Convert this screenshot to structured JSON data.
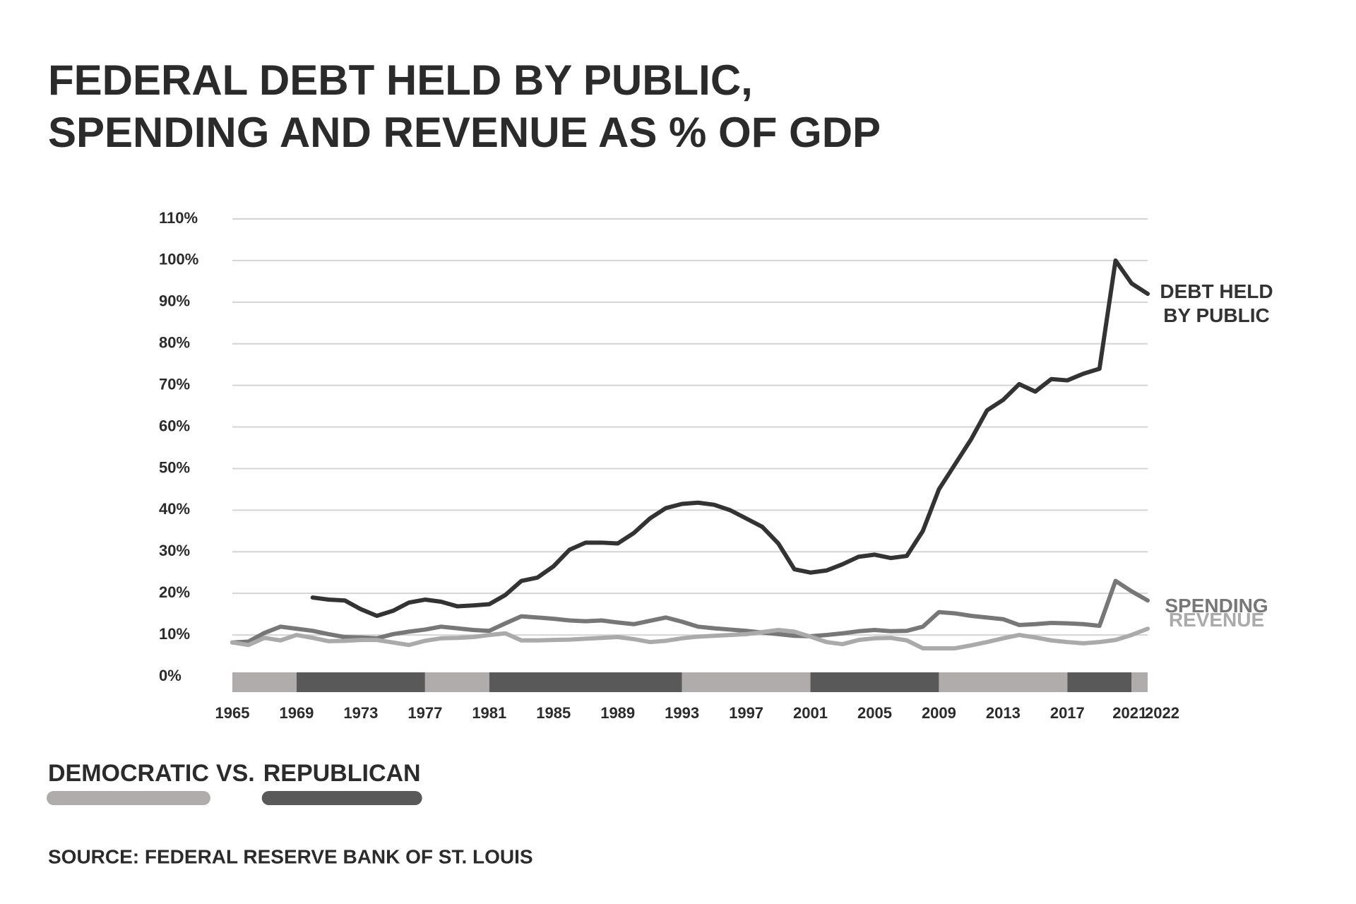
{
  "chart_data": {
    "type": "line",
    "title_lines": [
      "FEDERAL DEBT HELD BY PUBLIC,",
      "SPENDING AND REVENUE AS % OF GDP"
    ],
    "x": [
      1965,
      1966,
      1967,
      1968,
      1969,
      1970,
      1971,
      1972,
      1973,
      1974,
      1975,
      1976,
      1977,
      1978,
      1979,
      1980,
      1981,
      1982,
      1983,
      1984,
      1985,
      1986,
      1987,
      1988,
      1989,
      1990,
      1991,
      1992,
      1993,
      1994,
      1995,
      1996,
      1997,
      1998,
      1999,
      2000,
      2001,
      2002,
      2003,
      2004,
      2005,
      2006,
      2007,
      2008,
      2009,
      2010,
      2011,
      2012,
      2013,
      2014,
      2015,
      2016,
      2017,
      2018,
      2019,
      2020,
      2021,
      2022
    ],
    "series": [
      {
        "name": "DEBT HELD BY PUBLIC",
        "color": "#333333",
        "values": [
          null,
          null,
          null,
          null,
          null,
          19,
          18.5,
          18.3,
          16.2,
          14.6,
          15.8,
          17.8,
          18.5,
          18,
          16.9,
          17.1,
          17.4,
          19.6,
          23,
          23.8,
          26.5,
          30.5,
          32.2,
          32.2,
          32,
          34.5,
          38,
          40.5,
          41.5,
          41.8,
          41.3,
          40,
          38,
          36,
          32,
          25.8,
          25,
          25.5,
          27,
          28.8,
          29.3,
          28.5,
          29,
          35,
          45,
          51,
          57,
          64,
          66.5,
          70.3,
          68.5,
          71.5,
          71.2,
          72.8,
          74,
          100,
          94.5,
          92
        ]
      },
      {
        "name": "SPENDING",
        "color": "#777777",
        "values": [
          8.2,
          8.4,
          10.5,
          12,
          11.5,
          11,
          10.2,
          9.5,
          9.4,
          9.2,
          10.2,
          10.8,
          11.3,
          12,
          11.6,
          11.2,
          11,
          12.8,
          14.5,
          14.2,
          13.9,
          13.5,
          13.3,
          13.5,
          13,
          12.6,
          13.4,
          14.2,
          13.2,
          12,
          11.6,
          11.3,
          11,
          10.6,
          10.2,
          9.8,
          9.7,
          10,
          10.4,
          10.9,
          11.2,
          10.9,
          11,
          12,
          15.5,
          15.2,
          14.6,
          14.2,
          13.8,
          12.4,
          12.6,
          12.9,
          12.8,
          12.6,
          12.2,
          23,
          20.5,
          18.3
        ]
      },
      {
        "name": "REVENUE",
        "color": "#aaaaaa",
        "values": [
          8.2,
          7.6,
          9.3,
          8.7,
          10,
          9.3,
          8.5,
          8.6,
          8.8,
          8.8,
          8.2,
          7.6,
          8.6,
          9.2,
          9.3,
          9.5,
          10,
          10.4,
          8.7,
          8.7,
          8.8,
          8.9,
          9.1,
          9.3,
          9.5,
          9,
          8.3,
          8.6,
          9.2,
          9.6,
          9.8,
          10,
          10.2,
          10.7,
          11.2,
          10.8,
          9.6,
          8.3,
          7.8,
          8.8,
          9.2,
          9.3,
          8.7,
          6.8,
          6.8,
          6.8,
          7.5,
          8.3,
          9.2,
          10,
          9.4,
          8.7,
          8.3,
          8,
          8.3,
          8.8,
          10,
          11.5
        ]
      }
    ],
    "xlim": [
      1965,
      2022
    ],
    "xticks": [
      1965,
      1969,
      1973,
      1977,
      1981,
      1985,
      1989,
      1993,
      1997,
      2001,
      2005,
      2009,
      2013,
      2017,
      2021,
      2022
    ],
    "ylim": [
      0,
      110
    ],
    "yticks": [
      {
        "value": 0,
        "label": "0%"
      },
      {
        "value": 10,
        "label": "10%"
      },
      {
        "value": 20,
        "label": "20%"
      },
      {
        "value": 30,
        "label": "30%"
      },
      {
        "value": 40,
        "label": "40%"
      },
      {
        "value": 50,
        "label": "50%"
      },
      {
        "value": 60,
        "label": "60%"
      },
      {
        "value": 70,
        "label": "70%"
      },
      {
        "value": 80,
        "label": "80%"
      },
      {
        "value": 90,
        "label": "90%"
      },
      {
        "value": 100,
        "label": "100%"
      },
      {
        "value": 110,
        "label": "110%"
      }
    ],
    "grid": true,
    "parties": [
      {
        "name": "DEMOCRATIC",
        "color": "#b0acab"
      },
      {
        "name": "REPUBLICAN",
        "color": "#595959"
      }
    ],
    "legend_joiner": "VS.",
    "terms": [
      {
        "start": 1965,
        "end": 1969,
        "party": 0
      },
      {
        "start": 1969,
        "end": 1977,
        "party": 1
      },
      {
        "start": 1977,
        "end": 1981,
        "party": 0
      },
      {
        "start": 1981,
        "end": 1993,
        "party": 1
      },
      {
        "start": 1993,
        "end": 2001,
        "party": 0
      },
      {
        "start": 2001,
        "end": 2009,
        "party": 1
      },
      {
        "start": 2009,
        "end": 2017,
        "party": 0
      },
      {
        "start": 2017,
        "end": 2021,
        "party": 1
      },
      {
        "start": 2021,
        "end": 2022,
        "party": 0
      }
    ],
    "source": "SOURCE: FEDERAL RESERVE BANK OF ST. LOUIS"
  }
}
